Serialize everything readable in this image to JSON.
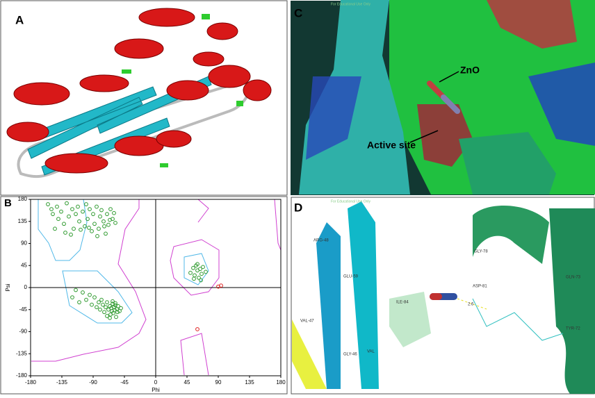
{
  "panel_a": {
    "label": "A"
  },
  "chart_data": {
    "type": "scatter",
    "panel_label": "B",
    "xlabel": "Phi",
    "ylabel": "Psi",
    "xlim": [
      -180,
      180
    ],
    "ylim": [
      -180,
      180
    ],
    "xticks": [
      -180,
      -135,
      -90,
      -45,
      0,
      45,
      90,
      135,
      180
    ],
    "yticks": [
      -180,
      -135,
      -90,
      -45,
      0,
      45,
      90,
      135,
      180
    ],
    "series": [
      {
        "color": "#2e9a2e",
        "x": [
          -155,
          -150,
          -148,
          -142,
          -140,
          -136,
          -132,
          -128,
          -125,
          -120,
          -118,
          -115,
          -112,
          -110,
          -105,
          -102,
          -100,
          -98,
          -95,
          -92,
          -90,
          -88,
          -85,
          -82,
          -80,
          -78,
          -75,
          -72,
          -70,
          -68,
          -65,
          -62,
          -145,
          -130,
          -122,
          -108,
          -96,
          -84,
          -74,
          -66,
          -60,
          -58,
          -120,
          -115,
          -110,
          -105,
          -100,
          -95,
          -92,
          -88,
          -85,
          -82,
          -80,
          -78,
          -76,
          -74,
          -72,
          -70,
          -68,
          -66,
          -65,
          -64,
          -63,
          -62,
          -61,
          -60,
          -59,
          -58,
          -57,
          -56,
          -55,
          -54,
          -52,
          -50,
          -70,
          -66,
          -62,
          -58,
          50,
          54,
          56,
          58,
          60,
          62,
          64,
          66,
          68,
          72,
          55,
          60,
          65
        ],
        "values": [
          170,
          160,
          150,
          165,
          140,
          155,
          130,
          172,
          145,
          160,
          120,
          150,
          165,
          135,
          155,
          125,
          170,
          140,
          160,
          115,
          150,
          130,
          165,
          120,
          145,
          158,
          135,
          110,
          150,
          128,
          160,
          140,
          120,
          112,
          108,
          118,
          122,
          105,
          125,
          138,
          152,
          132,
          -20,
          -5,
          -30,
          -10,
          -25,
          -15,
          -35,
          -20,
          -40,
          -30,
          -45,
          -25,
          -35,
          -50,
          -40,
          -30,
          -45,
          -38,
          -55,
          -42,
          -48,
          -33,
          -52,
          -40,
          -46,
          -36,
          -60,
          -44,
          -50,
          -38,
          -48,
          -42,
          -58,
          -62,
          -28,
          -32,
          30,
          40,
          25,
          45,
          35,
          20,
          38,
          28,
          42,
          32,
          18,
          48,
          15
        ]
      },
      {
        "color": "#e02020",
        "x": [
          90,
          94,
          60
        ],
        "values": [
          2,
          4,
          -85
        ]
      }
    ]
  },
  "panel_c": {
    "label": "C",
    "watermark": "For Educational Use Only",
    "annotations": [
      "ZnO",
      "Active site"
    ]
  },
  "panel_d": {
    "label": "D",
    "watermark": "For Educational Use Only",
    "residues": [
      "ARG-48",
      "GLU-59",
      "VAL-47",
      "GLY-46",
      "VAL",
      "GLY-78",
      "GLN-73",
      "TYR-72",
      "ASP-81",
      "ILE-84"
    ],
    "distance": "2.6"
  }
}
